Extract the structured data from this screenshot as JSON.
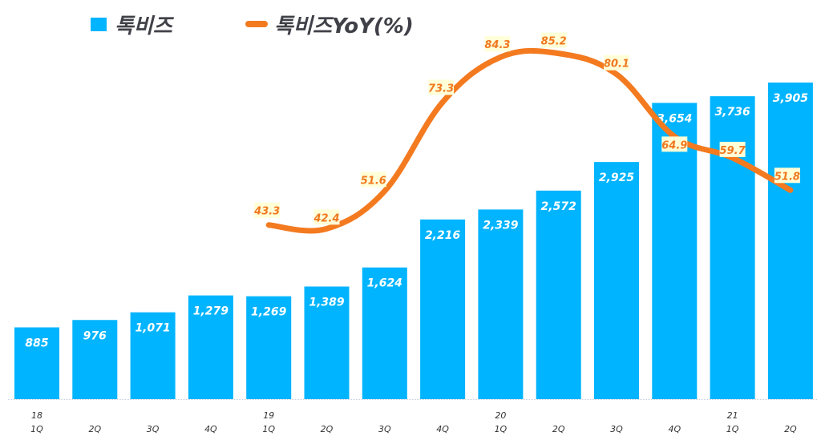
{
  "chart_data": {
    "type": "bar+line",
    "title": "",
    "categories": [
      {
        "year": "18",
        "q": "1Q"
      },
      {
        "year": "",
        "q": "2Q"
      },
      {
        "year": "",
        "q": "3Q"
      },
      {
        "year": "",
        "q": "4Q"
      },
      {
        "year": "19",
        "q": "1Q"
      },
      {
        "year": "",
        "q": "2Q"
      },
      {
        "year": "",
        "q": "3Q"
      },
      {
        "year": "",
        "q": "4Q"
      },
      {
        "year": "20",
        "q": "1Q"
      },
      {
        "year": "",
        "q": "2Q"
      },
      {
        "year": "",
        "q": "3Q"
      },
      {
        "year": "",
        "q": "4Q"
      },
      {
        "year": "21",
        "q": "1Q"
      },
      {
        "year": "",
        "q": "2Q"
      }
    ],
    "series": [
      {
        "name": "톡비즈",
        "type": "bar",
        "axis": "primary",
        "color": "#00b4ff",
        "values": [
          885,
          976,
          1071,
          1279,
          1269,
          1389,
          1624,
          2216,
          2339,
          2572,
          2925,
          3654,
          3736,
          3905
        ],
        "labels": [
          "885",
          "976",
          "1,071",
          "1,279",
          "1,269",
          "1,389",
          "1,624",
          "2,216",
          "2,339",
          "2,572",
          "2,925",
          "3,654",
          "3,736",
          "3,905"
        ]
      },
      {
        "name": "톡비즈YoY(%)",
        "type": "line",
        "axis": "secondary",
        "color": "#f47a20",
        "values": [
          null,
          null,
          null,
          null,
          43.3,
          42.4,
          51.6,
          73.3,
          84.3,
          85.2,
          80.1,
          64.9,
          59.7,
          51.8
        ],
        "labels": [
          "",
          "",
          "",
          "",
          "43.3",
          "42.4",
          "51.6",
          "73.3",
          "84.3",
          "85.2",
          "80.1",
          "64.9",
          "59.7",
          "51.8"
        ]
      }
    ],
    "ylim": [
      0,
      4000
    ],
    "y2lim": [
      0,
      98
    ],
    "grid": false,
    "legend": "top-left"
  }
}
